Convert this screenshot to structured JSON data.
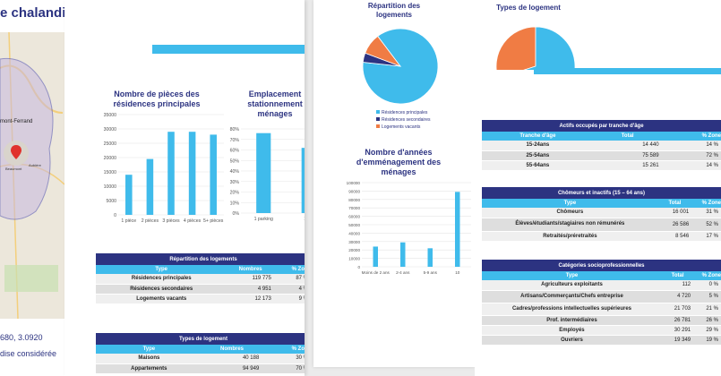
{
  "page1": {
    "title": "e chalandise",
    "map_labels": [
      "mont-Ferrand",
      "Beaumont",
      "Aubière"
    ],
    "coords": "680, 3.0920",
    "zone_text": "dise considérée"
  },
  "page2": {
    "chart1": {
      "title": "Nombre de pièces des résidences principales",
      "chart_data": {
        "type": "bar",
        "categories": [
          "1 pièce",
          "2 pièces",
          "3 pièces",
          "4 pièces",
          "5+ pièces"
        ],
        "values": [
          14000,
          19500,
          29000,
          29000,
          28000
        ],
        "ylim": [
          0,
          35000
        ],
        "yticks": [
          "0",
          "5000",
          "10000",
          "15000",
          "20000",
          "25000",
          "30000",
          "35000"
        ]
      }
    },
    "chart2": {
      "title": "Emplacement stationnement ménages",
      "chart_data": {
        "type": "bar",
        "categories": [
          "1 parking",
          "1 voi"
        ],
        "values": [
          76,
          62
        ],
        "yticks": [
          "0%",
          "10%",
          "20%",
          "30%",
          "40%",
          "50%",
          "60%",
          "70%",
          "80%"
        ]
      }
    },
    "table1": {
      "title": "Répartition des logements",
      "headers": [
        "Type",
        "Nombres",
        "% Zone"
      ],
      "rows": [
        [
          "Résidences principales",
          "119 775",
          "87 %"
        ],
        [
          "Résidences secondaires",
          "4 951",
          "4 %"
        ],
        [
          "Logements vacants",
          "12 173",
          "9 %"
        ]
      ]
    },
    "table2": {
      "title": "Types de logement",
      "headers": [
        "Type",
        "Nombres",
        "% Zone"
      ],
      "rows": [
        [
          "Maisons",
          "40 188",
          "30 %"
        ],
        [
          "Appartements",
          "94 949",
          "70 %"
        ]
      ]
    }
  },
  "page3": {
    "pie_title": "Répartition des logements",
    "pie_legend": [
      "Résidences principales",
      "Résidences secondaires",
      "Logements vacants"
    ],
    "chart_data": {
      "type": "pie",
      "labels": [
        "Résidences principales",
        "Résidences secondaires",
        "Logements vacants"
      ],
      "values": [
        87,
        4,
        9
      ],
      "colors": [
        "#3fbbeb",
        "#2c3381",
        "#f07c44"
      ]
    },
    "chart3": {
      "title": "Nombre d'années d'emménagement des ménages",
      "chart_data": {
        "type": "bar",
        "categories": [
          "Moins de 2 ans",
          "2-4 ans",
          "5-9 ans",
          "10"
        ],
        "values": [
          24000,
          29000,
          22000,
          89000
        ],
        "ylim": [
          0,
          100000
        ],
        "yticks": [
          "0",
          "10000",
          "20000",
          "30000",
          "40000",
          "50000",
          "60000",
          "70000",
          "80000",
          "90000",
          "100000"
        ]
      }
    }
  },
  "page4": {
    "pie_title": "Types de logement",
    "chart_data": {
      "type": "pie",
      "labels": [
        "Maisons",
        "Appartements"
      ],
      "values": [
        30,
        70
      ],
      "colors": [
        "#f07c44",
        "#3fbbeb"
      ]
    },
    "table_actifs": {
      "title": "Actifs occupés par tranche d'âge",
      "headers": [
        "Tranche d'âge",
        "Total",
        "% Zone"
      ],
      "rows": [
        [
          "15-24ans",
          "14 440",
          "14 %"
        ],
        [
          "25-54ans",
          "75 589",
          "72 %"
        ],
        [
          "55-64ans",
          "15 261",
          "14 %"
        ]
      ]
    },
    "table_chomeurs": {
      "title": "Chômeurs et inactifs (15 – 64 ans)",
      "headers": [
        "Type",
        "Total",
        "% Zone"
      ],
      "rows": [
        [
          "Chômeurs",
          "16 001",
          "31 %"
        ],
        [
          "Élèves/étudiants/stagiaires non rémunérés",
          "26 586",
          "52 %"
        ],
        [
          "Retraités/préretraités",
          "8 546",
          "17 %"
        ]
      ]
    },
    "table_csp": {
      "title": "Catégories socioprofessionnelles",
      "headers": [
        "Type",
        "Total",
        "% Zone"
      ],
      "rows": [
        [
          "Agriculteurs exploitants",
          "112",
          "0 %"
        ],
        [
          "Artisans/Commerçants/Chefs entreprise",
          "4 720",
          "5 %"
        ],
        [
          "Cadres/professions intellectuelles supérieures",
          "21 703",
          "21 %"
        ],
        [
          "Prof. intermédiaires",
          "26 781",
          "26 %"
        ],
        [
          "Employés",
          "30 291",
          "29 %"
        ],
        [
          "Ouvriers",
          "19 349",
          "19 %"
        ]
      ]
    }
  }
}
